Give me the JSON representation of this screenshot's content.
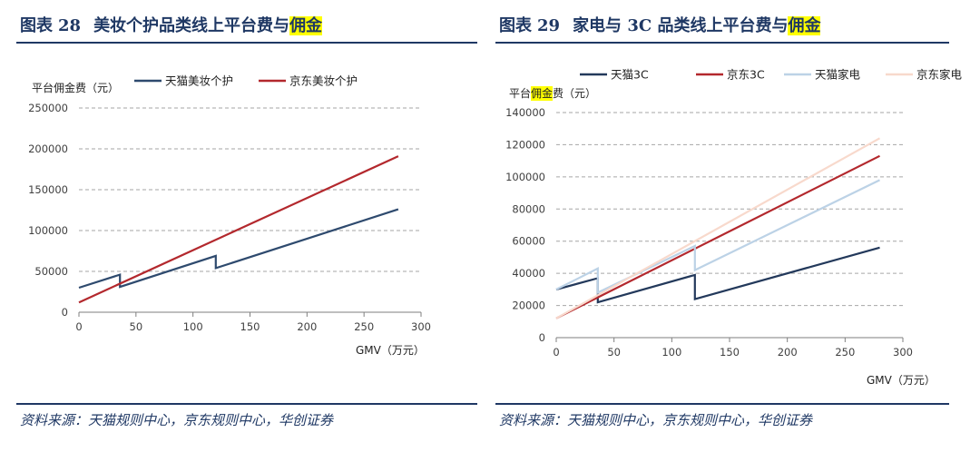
{
  "left": {
    "figure_label": "图表",
    "figure_number": "28",
    "title_main": "美妆个护品类线上平台费与",
    "title_highlight": "佣金",
    "source": "资料来源：天猫规则中心，京东规则中心，华创证券"
  },
  "right": {
    "figure_label": "图表",
    "figure_number": "29",
    "title_main": "家电与 3C 品类线上平台费与",
    "title_highlight": "佣金",
    "source": "资料来源：天猫规则中心，京东规则中心，华创证券"
  },
  "chart_data": [
    {
      "type": "line",
      "title": "美妆个护品类线上平台费与佣金",
      "ylabel": "平台佣金费（元）",
      "xlabel": "GMV（万元）",
      "xlim": [
        0,
        300
      ],
      "ylim": [
        0,
        250000
      ],
      "xticks": [
        0,
        50,
        100,
        150,
        200,
        250,
        300
      ],
      "yticks": [
        0,
        50000,
        100000,
        150000,
        200000,
        250000
      ],
      "grid": "horizontal-dashed",
      "series": [
        {
          "name": "天猫美妆个护",
          "color": "#2e4a6e",
          "points": [
            [
              0,
              30000
            ],
            [
              36,
              46000
            ],
            [
              36,
              31000
            ],
            [
              120,
              69000
            ],
            [
              120,
              54000
            ],
            [
              280,
              126000
            ]
          ]
        },
        {
          "name": "京东美妆个护",
          "color": "#b3282d",
          "points": [
            [
              0,
              12000
            ],
            [
              280,
              191000
            ]
          ]
        }
      ]
    },
    {
      "type": "line",
      "title": "家电与3C品类线上平台费与佣金",
      "ylabel_pre": "平台",
      "ylabel_highlight": "佣金",
      "ylabel_post": "费（元）",
      "xlabel": "GMV（万元）",
      "xlim": [
        0,
        300
      ],
      "ylim": [
        0,
        140000
      ],
      "xticks": [
        0,
        50,
        100,
        150,
        200,
        250,
        300
      ],
      "yticks": [
        0,
        20000,
        40000,
        60000,
        80000,
        100000,
        120000,
        140000
      ],
      "grid": "horizontal-dashed",
      "series": [
        {
          "name": "天猫3C",
          "color": "#23395b",
          "points": [
            [
              0,
              30000
            ],
            [
              36,
              37000
            ],
            [
              36,
              22000
            ],
            [
              120,
              39000
            ],
            [
              120,
              24000
            ],
            [
              280,
              56000
            ]
          ]
        },
        {
          "name": "京东3C",
          "color": "#b3282d",
          "points": [
            [
              0,
              12000
            ],
            [
              280,
              113000
            ]
          ]
        },
        {
          "name": "天猫家电",
          "color": "#bcd2e6",
          "points": [
            [
              0,
              30000
            ],
            [
              36,
              43000
            ],
            [
              36,
              28000
            ],
            [
              120,
              57000
            ],
            [
              120,
              42000
            ],
            [
              280,
              98000
            ]
          ]
        },
        {
          "name": "京东家电",
          "color": "#f8d9cc",
          "points": [
            [
              0,
              12000
            ],
            [
              280,
              124000
            ]
          ]
        }
      ]
    }
  ]
}
